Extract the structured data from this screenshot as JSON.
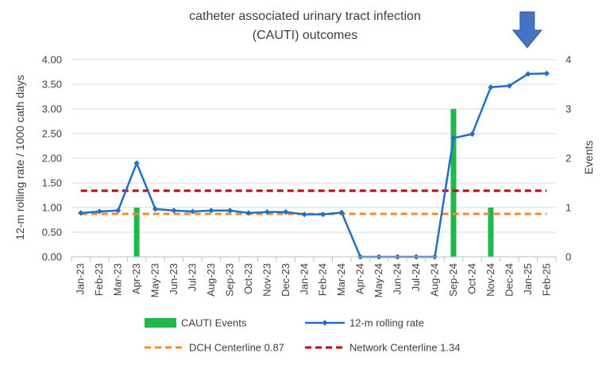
{
  "chart_data": {
    "type": "bar+line",
    "title_lines": [
      "catheter associated urinary tract infection",
      "(CAUTI) outcomes"
    ],
    "ylabel_left": "12-m rolling rate / 1000 cath days",
    "ylabel_right": "Events",
    "ylim_left": [
      0,
      4
    ],
    "ylim_right": [
      0,
      4
    ],
    "yticks_left": [
      "0.00",
      "0.50",
      "1.00",
      "1.50",
      "2.00",
      "2.50",
      "3.00",
      "3.50",
      "4.00"
    ],
    "yticks_right": [
      "0",
      "1",
      "2",
      "3",
      "4"
    ],
    "categories": [
      "Jan-23",
      "Feb-23",
      "Mar-23",
      "Apr-23",
      "May-23",
      "Jun-23",
      "Jul-23",
      "Aug-23",
      "Sep-23",
      "Oct-23",
      "Nov-23",
      "Dec-23",
      "Jan-24",
      "Feb-24",
      "Mar-24",
      "Apr-24",
      "May-24",
      "Jun-24",
      "Jul-24",
      "Aug-24",
      "Sep-24",
      "Oct-24",
      "Nov-24",
      "Dec-24",
      "Jan-25",
      "Feb-25"
    ],
    "series": [
      {
        "name": "CAUTI Events",
        "kind": "bar",
        "axis": "right",
        "color": "#1fb84a",
        "values": [
          0,
          0,
          0,
          1,
          0,
          0,
          0,
          0,
          0,
          0,
          0,
          0,
          0,
          0,
          0,
          0,
          0,
          0,
          0,
          0,
          3,
          0,
          1,
          0,
          0,
          0
        ]
      },
      {
        "name": "12-m rolling rate",
        "kind": "line",
        "axis": "left",
        "color": "#1f6fc4",
        "values": [
          0.89,
          0.92,
          0.94,
          1.9,
          0.97,
          0.94,
          0.92,
          0.94,
          0.94,
          0.89,
          0.91,
          0.91,
          0.86,
          0.86,
          0.9,
          0,
          0,
          0,
          0,
          0,
          2.41,
          2.49,
          3.44,
          3.47,
          3.71,
          3.72
        ]
      },
      {
        "name": "DCH Centerline 0.87",
        "kind": "hline",
        "axis": "left",
        "color": "#f08a32",
        "value": 0.87
      },
      {
        "name": "Network Centerline 1.34",
        "kind": "hline",
        "axis": "left",
        "color": "#c00000",
        "value": 1.34
      }
    ],
    "annotation": {
      "type": "down-arrow",
      "at_category": "Jan-25",
      "color": "#4472c4"
    },
    "legend_location": "bottom"
  }
}
